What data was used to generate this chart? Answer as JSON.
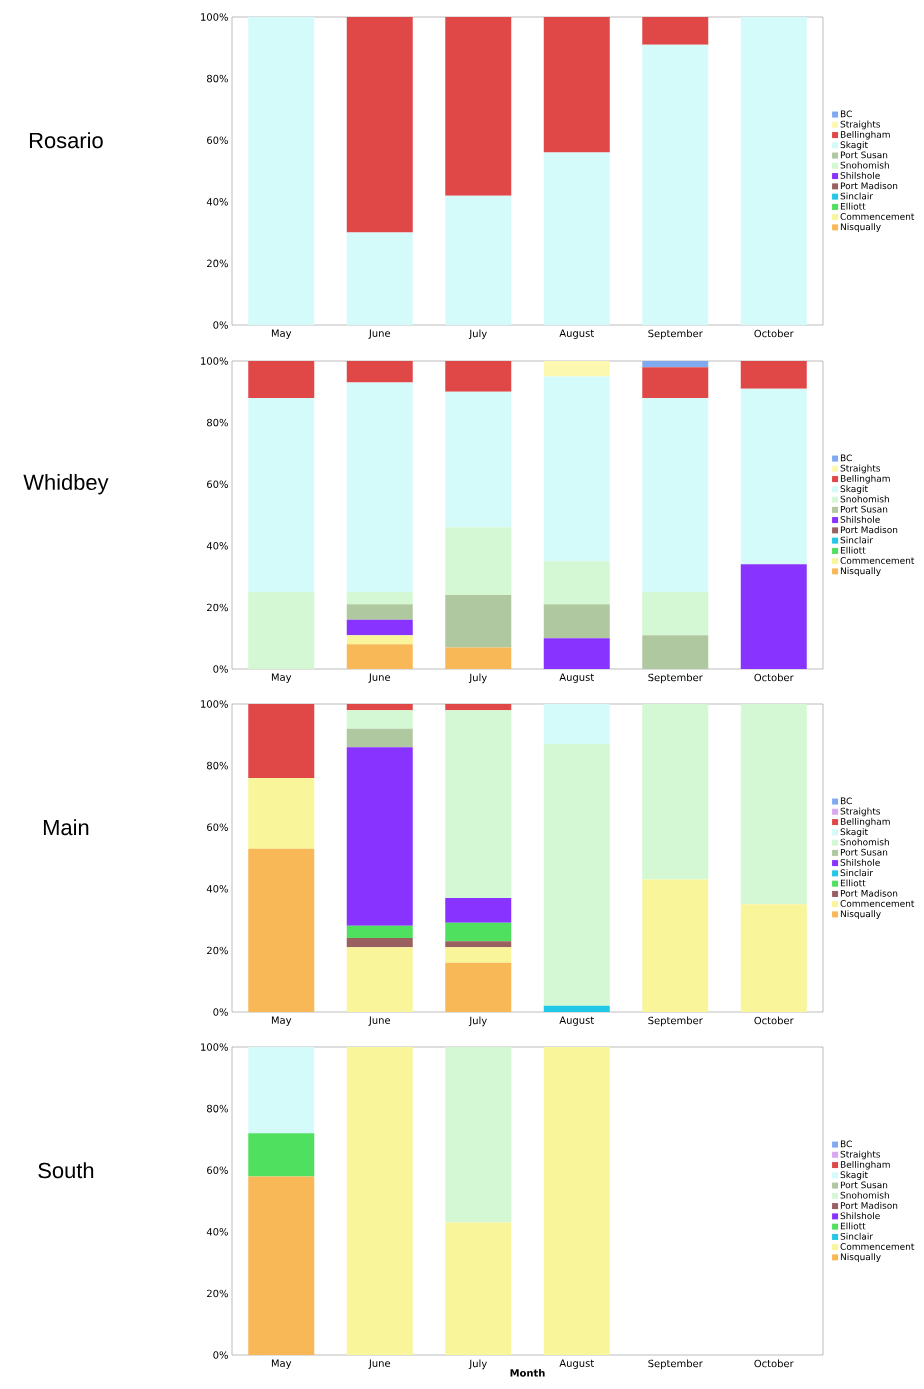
{
  "chart_data": [
    {
      "type": "bar",
      "title": "Rosario",
      "stacked": true,
      "legend": "right",
      "categories": [
        "May",
        "June",
        "July",
        "August",
        "September",
        "October"
      ],
      "ylim": [
        0,
        100
      ],
      "yticks": [
        {
          "value": 0,
          "label": "0%"
        },
        {
          "value": 20,
          "label": "20%"
        },
        {
          "value": 40,
          "label": "40%"
        },
        {
          "value": 60,
          "label": "60%"
        },
        {
          "value": 80,
          "label": "80%"
        },
        {
          "value": 100,
          "label": "100%"
        }
      ],
      "series": [
        {
          "name": "Nisqually",
          "color": "#f8b858",
          "values": [
            null,
            null,
            null,
            null,
            null,
            null
          ]
        },
        {
          "name": "Commencement",
          "color": "#f9f59a",
          "values": [
            null,
            null,
            null,
            null,
            null,
            null
          ]
        },
        {
          "name": "Elliott",
          "color": "#50e060",
          "values": [
            null,
            null,
            null,
            null,
            null,
            null
          ]
        },
        {
          "name": "Sinclair",
          "color": "#22c8e8",
          "values": [
            null,
            null,
            null,
            null,
            null,
            null
          ]
        },
        {
          "name": "Port Madison",
          "color": "#9a6060",
          "values": [
            null,
            null,
            null,
            null,
            null,
            null
          ]
        },
        {
          "name": "Shilshole",
          "color": "#8833ff",
          "values": [
            null,
            null,
            null,
            null,
            null,
            null
          ]
        },
        {
          "name": "Snohomish",
          "color": "#d3f8d3",
          "values": [
            null,
            null,
            null,
            null,
            null,
            null
          ]
        },
        {
          "name": "Port Susan",
          "color": "#b0c8a0",
          "values": [
            null,
            null,
            null,
            null,
            null,
            null
          ]
        },
        {
          "name": "Skagit",
          "color": "#d5fafa",
          "values": [
            100,
            30,
            42,
            56,
            91,
            100
          ]
        },
        {
          "name": "Bellingham",
          "color": "#e04848",
          "values": [
            null,
            70,
            58,
            44,
            9,
            null
          ]
        },
        {
          "name": "Straights",
          "color": "#fcf8b0",
          "values": [
            null,
            null,
            null,
            null,
            null,
            null
          ]
        },
        {
          "name": "BC",
          "color": "#80aaf0",
          "values": [
            null,
            null,
            null,
            null,
            null,
            null
          ]
        }
      ]
    },
    {
      "type": "bar",
      "title": "Whidbey",
      "stacked": true,
      "legend": "right",
      "categories": [
        "May",
        "June",
        "July",
        "August",
        "September",
        "October"
      ],
      "ylim": [
        0,
        100
      ],
      "yticks": [
        {
          "value": 0,
          "label": "0%"
        },
        {
          "value": 20,
          "label": "20%"
        },
        {
          "value": 40,
          "label": "40%"
        },
        {
          "value": 60,
          "label": "60%"
        },
        {
          "value": 80,
          "label": "80%"
        },
        {
          "value": 100,
          "label": "100%"
        }
      ],
      "series": [
        {
          "name": "Nisqually",
          "color": "#f8b858",
          "values": [
            null,
            8,
            7,
            null,
            null,
            null
          ]
        },
        {
          "name": "Commencement",
          "color": "#f9f59a",
          "values": [
            null,
            3,
            null,
            null,
            null,
            null
          ]
        },
        {
          "name": "Elliott",
          "color": "#50e060",
          "values": [
            null,
            null,
            null,
            null,
            null,
            null
          ]
        },
        {
          "name": "Sinclair",
          "color": "#22c8e8",
          "values": [
            null,
            null,
            null,
            null,
            null,
            null
          ]
        },
        {
          "name": "Port Madison",
          "color": "#9a6060",
          "values": [
            null,
            null,
            null,
            null,
            null,
            null
          ]
        },
        {
          "name": "Shilshole",
          "color": "#8833ff",
          "values": [
            null,
            5,
            null,
            10,
            null,
            34
          ]
        },
        {
          "name": "Port Susan",
          "color": "#b0c8a0",
          "values": [
            null,
            5,
            17,
            11,
            11,
            null
          ]
        },
        {
          "name": "Snohomish",
          "color": "#d3f8d3",
          "values": [
            25,
            4,
            22,
            14,
            14,
            null
          ]
        },
        {
          "name": "Skagit",
          "color": "#d5fafa",
          "values": [
            63,
            68,
            44,
            60,
            63,
            57
          ]
        },
        {
          "name": "Bellingham",
          "color": "#e04848",
          "values": [
            12,
            7,
            10,
            null,
            10,
            9
          ]
        },
        {
          "name": "Straights",
          "color": "#fcf8b0",
          "values": [
            null,
            null,
            null,
            5,
            null,
            null
          ]
        },
        {
          "name": "BC",
          "color": "#80aaf0",
          "values": [
            null,
            null,
            null,
            null,
            2,
            null
          ]
        }
      ]
    },
    {
      "type": "bar",
      "title": "Main",
      "stacked": true,
      "legend": "right",
      "categories": [
        "May",
        "June",
        "July",
        "August",
        "September",
        "October"
      ],
      "ylim": [
        0,
        100
      ],
      "yticks": [
        {
          "value": 0,
          "label": "0%"
        },
        {
          "value": 20,
          "label": "20%"
        },
        {
          "value": 40,
          "label": "40%"
        },
        {
          "value": 60,
          "label": "60%"
        },
        {
          "value": 80,
          "label": "80%"
        },
        {
          "value": 100,
          "label": "100%"
        }
      ],
      "series": [
        {
          "name": "Nisqually",
          "color": "#f8b858",
          "values": [
            53,
            null,
            16,
            null,
            null,
            null
          ]
        },
        {
          "name": "Commencement",
          "color": "#f9f59a",
          "values": [
            23,
            21,
            5,
            null,
            43,
            35
          ]
        },
        {
          "name": "Port Madison",
          "color": "#9a6060",
          "values": [
            null,
            3,
            2,
            null,
            null,
            null
          ]
        },
        {
          "name": "Elliott",
          "color": "#50e060",
          "values": [
            null,
            4,
            6,
            null,
            null,
            null
          ]
        },
        {
          "name": "Sinclair",
          "color": "#22c8e8",
          "values": [
            null,
            null,
            null,
            2,
            null,
            null
          ]
        },
        {
          "name": "Shilshole",
          "color": "#8833ff",
          "values": [
            null,
            58,
            8,
            null,
            null,
            null
          ]
        },
        {
          "name": "Port Susan",
          "color": "#b0c8a0",
          "values": [
            null,
            6,
            null,
            null,
            null,
            null
          ]
        },
        {
          "name": "Snohomish",
          "color": "#d3f8d3",
          "values": [
            null,
            6,
            61,
            85,
            57,
            65
          ]
        },
        {
          "name": "Skagit",
          "color": "#d5fafa",
          "values": [
            null,
            null,
            null,
            13,
            null,
            null
          ]
        },
        {
          "name": "Bellingham",
          "color": "#e04848",
          "values": [
            24,
            2,
            2,
            null,
            null,
            null
          ]
        },
        {
          "name": "Straights",
          "color": "#d8a8f0",
          "values": [
            null,
            null,
            null,
            null,
            null,
            null
          ]
        },
        {
          "name": "BC",
          "color": "#80aaf0",
          "values": [
            null,
            null,
            null,
            null,
            null,
            null
          ]
        }
      ]
    },
    {
      "type": "bar",
      "title": "South",
      "xlabel": "Month",
      "stacked": true,
      "legend": "right",
      "categories": [
        "May",
        "June",
        "July",
        "August",
        "September",
        "October"
      ],
      "ylim": [
        0,
        100
      ],
      "yticks": [
        {
          "value": 0,
          "label": "0%"
        },
        {
          "value": 20,
          "label": "20%"
        },
        {
          "value": 40,
          "label": "40%"
        },
        {
          "value": 60,
          "label": "60%"
        },
        {
          "value": 80,
          "label": "80%"
        },
        {
          "value": 100,
          "label": "100%"
        }
      ],
      "series": [
        {
          "name": "Nisqually",
          "color": "#f8b858",
          "values": [
            58,
            null,
            null,
            null,
            null,
            null
          ]
        },
        {
          "name": "Commencement",
          "color": "#f9f59a",
          "values": [
            null,
            100,
            43,
            100,
            null,
            null
          ]
        },
        {
          "name": "Sinclair",
          "color": "#22c8e8",
          "values": [
            null,
            null,
            null,
            null,
            null,
            null
          ]
        },
        {
          "name": "Elliott",
          "color": "#50e060",
          "values": [
            14,
            null,
            null,
            null,
            null,
            null
          ]
        },
        {
          "name": "Shilshole",
          "color": "#8833ff",
          "values": [
            null,
            null,
            null,
            null,
            null,
            null
          ]
        },
        {
          "name": "Port Madison",
          "color": "#9a6060",
          "values": [
            null,
            null,
            null,
            null,
            null,
            null
          ]
        },
        {
          "name": "Snohomish",
          "color": "#d3f8d3",
          "values": [
            null,
            null,
            57,
            null,
            null,
            null
          ]
        },
        {
          "name": "Port Susan",
          "color": "#b0c8a0",
          "values": [
            null,
            null,
            null,
            null,
            null,
            null
          ]
        },
        {
          "name": "Skagit",
          "color": "#d5fafa",
          "values": [
            28,
            null,
            null,
            null,
            null,
            null
          ]
        },
        {
          "name": "Bellingham",
          "color": "#e04848",
          "values": [
            null,
            null,
            null,
            null,
            null,
            null
          ]
        },
        {
          "name": "Straights",
          "color": "#d8a8f0",
          "values": [
            null,
            null,
            null,
            null,
            null,
            null
          ]
        },
        {
          "name": "BC",
          "color": "#80aaf0",
          "values": [
            null,
            null,
            null,
            null,
            null,
            null
          ]
        }
      ]
    }
  ]
}
